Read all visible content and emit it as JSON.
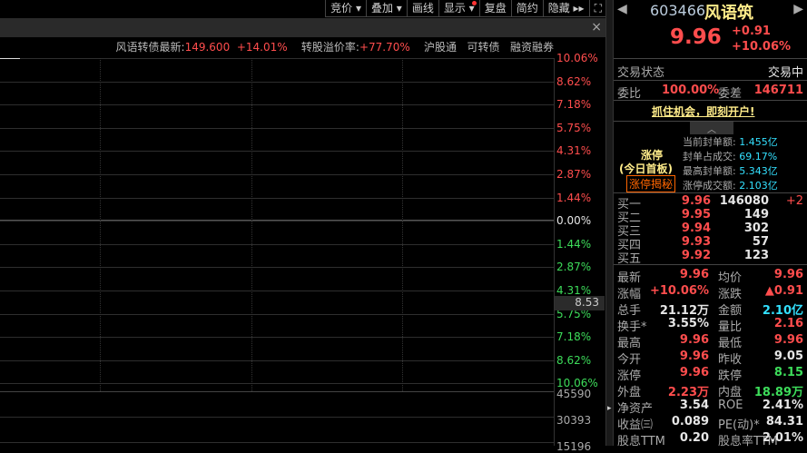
{
  "toolbar": {
    "items": [
      "竞价 ▾",
      "叠加 ▾",
      "画线",
      "显示 ▾",
      "复盘",
      "简约",
      "隐藏 ▸▸"
    ],
    "fullscreen_icon": "expand-icon"
  },
  "info_bar": {
    "close": "×",
    "bond_label": "风语转债最新:",
    "bond_price": "149.600",
    "bond_change": "+14.01%",
    "premium_label": "转股溢价率:",
    "premium_value": "+77.70%",
    "tags": [
      "沪股通",
      "可转债",
      "融资融券"
    ]
  },
  "axis": {
    "up": [
      "10.06%",
      "8.62%",
      "7.18%",
      "5.75%",
      "4.31%",
      "2.87%",
      "1.44%"
    ],
    "zero": "0.00%",
    "down": [
      "1.44%",
      "2.87%",
      "4.31%",
      "5.75%",
      "7.18%",
      "8.62%",
      "10.06%"
    ],
    "cursor_value": "8.53",
    "volume": [
      "45590",
      "30393",
      "15196"
    ]
  },
  "quote": {
    "code": "603466",
    "name": "风语筑",
    "price": "9.96",
    "change": "+0.91",
    "change_pct": "+10.06%",
    "status_label": "交易状态",
    "status": "交易中",
    "wb_label": "委比",
    "wb": "100.00%",
    "wc_label": "委差",
    "wc": "146711",
    "ad": "抓住机会，即刻开户!"
  },
  "limit": {
    "title": "涨停",
    "sub": "(今日首板)",
    "button": "涨停揭秘",
    "rows": [
      [
        "当前封单额:",
        "1.455亿"
      ],
      [
        "封单占成交:",
        "69.17%"
      ],
      [
        "最高封单额:",
        "5.343亿"
      ],
      [
        "涨停成交额:",
        "2.103亿"
      ]
    ]
  },
  "bids": [
    [
      "买一",
      "9.96",
      "146080",
      "+2"
    ],
    [
      "买二",
      "9.95",
      "149",
      ""
    ],
    [
      "买三",
      "9.94",
      "302",
      ""
    ],
    [
      "买四",
      "9.93",
      "57",
      ""
    ],
    [
      "买五",
      "9.92",
      "123",
      ""
    ]
  ],
  "stats": [
    [
      "最新",
      "9.96",
      "red",
      "均价",
      "9.96",
      "red"
    ],
    [
      "涨幅",
      "+10.06%",
      "red",
      "涨跌",
      "▲0.91",
      "red"
    ],
    [
      "总手",
      "21.12万",
      "white",
      "金额",
      "2.10亿",
      "cyan"
    ],
    [
      "换手*",
      "3.55%",
      "white",
      "量比",
      "2.16",
      "red"
    ],
    [
      "最高",
      "9.96",
      "red",
      "最低",
      "9.96",
      "red"
    ],
    [
      "今开",
      "9.96",
      "red",
      "昨收",
      "9.05",
      "white"
    ],
    [
      "涨停",
      "9.96",
      "red",
      "跌停",
      "8.15",
      "green"
    ],
    [
      "外盘",
      "2.23万",
      "red",
      "内盘",
      "18.89万",
      "green"
    ],
    [
      "净资产",
      "3.54",
      "white",
      "ROE",
      "2.41%",
      "white"
    ],
    [
      "收益㈢",
      "0.089",
      "white",
      "PE(动)*",
      "84.31",
      "white"
    ],
    [
      "股息TTM",
      "0.20",
      "white",
      "股息率TTM",
      "2.01%",
      "white"
    ]
  ]
}
